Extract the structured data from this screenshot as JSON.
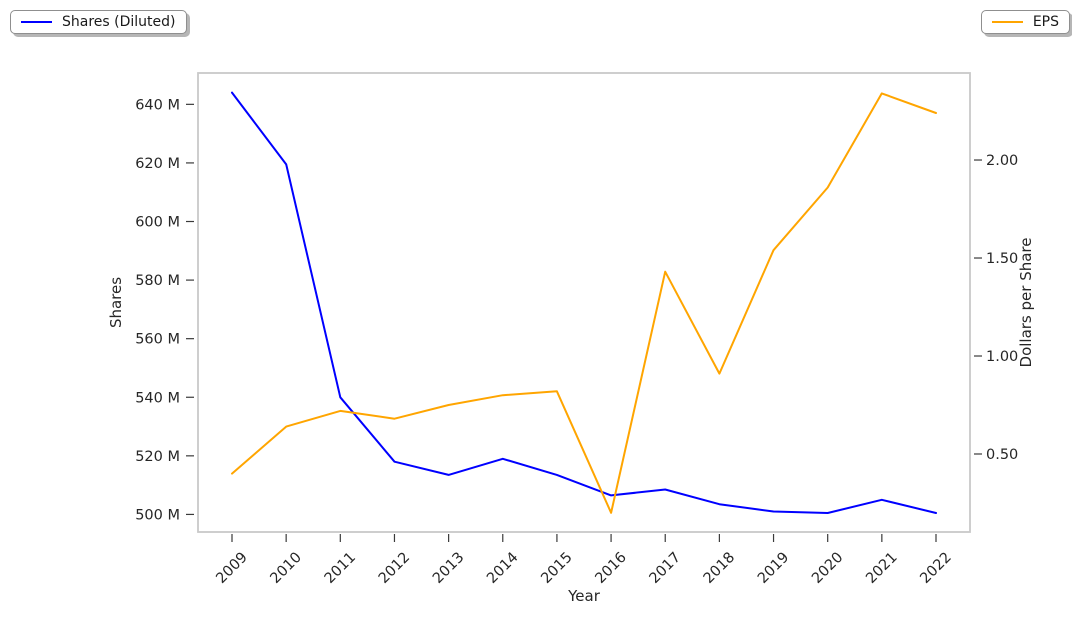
{
  "chart_data": {
    "type": "line",
    "title": "",
    "xlabel": "Year",
    "x": [
      2009,
      2010,
      2011,
      2012,
      2013,
      2014,
      2015,
      2016,
      2017,
      2018,
      2019,
      2020,
      2021,
      2022
    ],
    "series": [
      {
        "name": "Shares (Diluted)",
        "yaxis": "left",
        "color": "#0000ff",
        "unit": "millions of shares",
        "values": [
          644,
          619.5,
          540,
          518,
          513.5,
          519,
          513.5,
          506.5,
          508.5,
          503.5,
          501,
          500.5,
          505,
          500.5
        ]
      },
      {
        "name": "EPS",
        "yaxis": "right",
        "color": "#ffa500",
        "unit": "dollars per share",
        "values": [
          0.4,
          0.64,
          0.72,
          0.68,
          0.75,
          0.8,
          0.82,
          0.2,
          1.43,
          0.91,
          1.54,
          1.86,
          2.34,
          2.24
        ]
      }
    ],
    "axes": {
      "left": {
        "label": "Shares",
        "lim": [
          494,
          650.7
        ],
        "ticks": [
          500,
          520,
          540,
          560,
          580,
          600,
          620,
          640
        ],
        "tick_labels": [
          "500 M",
          "520 M",
          "540 M",
          "560 M",
          "580 M",
          "600 M",
          "620 M",
          "640 M"
        ]
      },
      "right": {
        "label": "Dollars per Share",
        "lim": [
          0.102,
          2.444
        ],
        "ticks": [
          0.5,
          1.0,
          1.5,
          2.0
        ],
        "tick_labels": [
          "0.50",
          "1.00",
          "1.50",
          "2.00"
        ]
      }
    },
    "grid": false,
    "x_tick_rotation": 45,
    "legend_position": {
      "shares_diluted": "figure top-left",
      "eps": "figure top-right"
    },
    "style": {
      "spine_color": "#c9c9c9",
      "tick_color": "#3a3a3a",
      "text_color": "#262626",
      "background": "#ffffff"
    }
  }
}
